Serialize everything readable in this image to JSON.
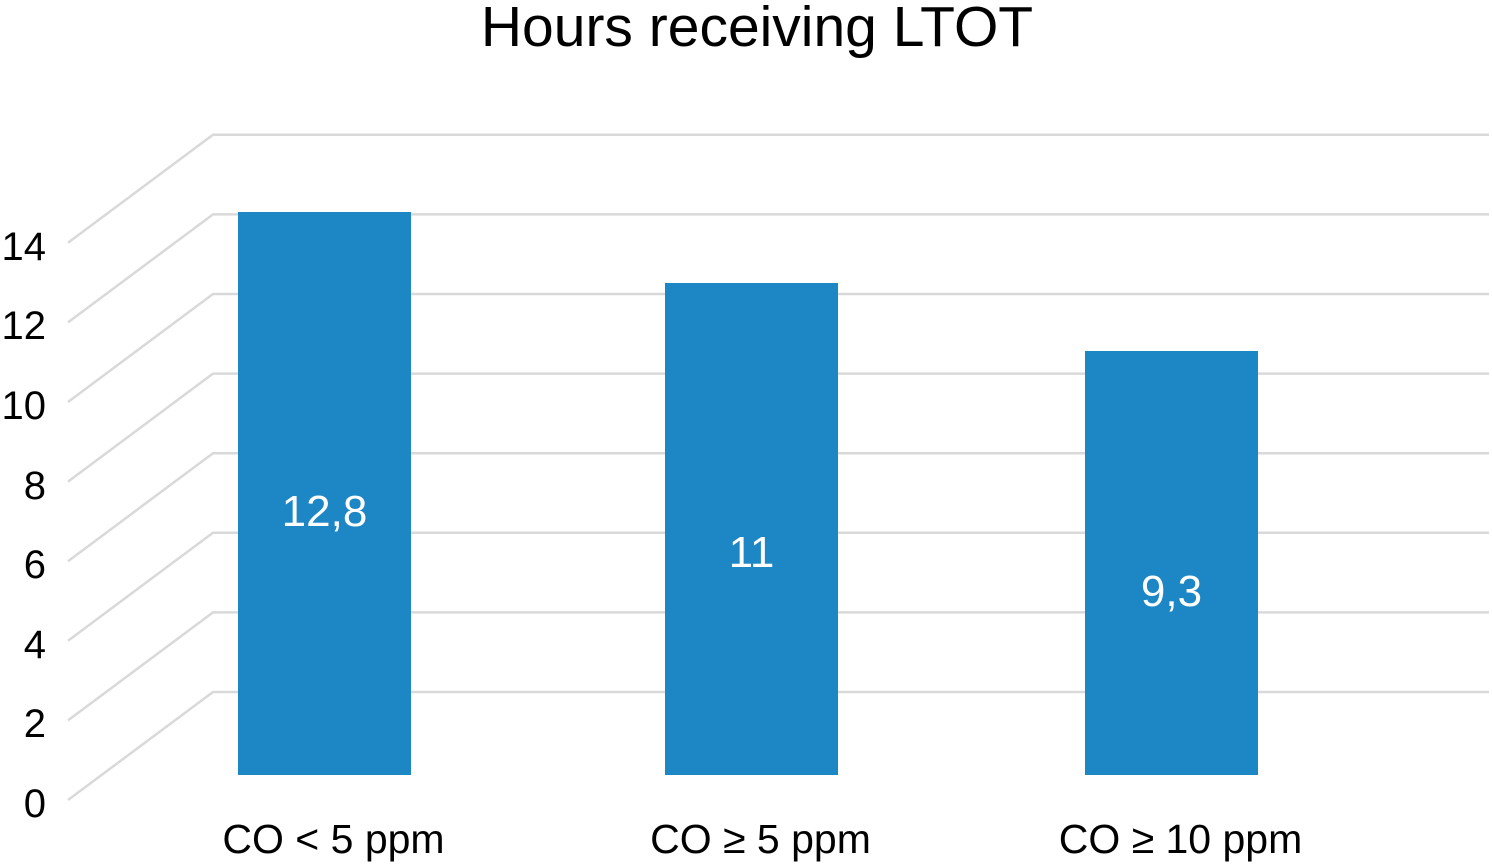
{
  "chart_data": {
    "type": "bar",
    "title": "Hours receiving LTOT",
    "categories": [
      "CO < 5 ppm",
      "CO ≥ 5 ppm",
      "CO ≥ 10 ppm"
    ],
    "values": [
      12.8,
      11,
      9.3
    ],
    "value_labels": [
      "12,8",
      "11",
      "9,3"
    ],
    "xlabel": "",
    "ylabel": "",
    "ylim": [
      0,
      14
    ],
    "yticks": [
      0,
      2,
      4,
      6,
      8,
      10,
      12,
      14
    ],
    "ytick_labels": [
      "0",
      "2",
      "4",
      "6",
      "8",
      "10",
      "12",
      "14"
    ],
    "grid": true,
    "legend": "none",
    "style": "flat blue columns over light-gray horizontal gridlines with 3D-perspective diagonal connectors to the left axis",
    "colors": {
      "bar": "#1d87c5",
      "gridline": "#d9d9d9",
      "text": "#000000",
      "bar_value_text": "#ffffff",
      "background": "#ffffff"
    }
  }
}
